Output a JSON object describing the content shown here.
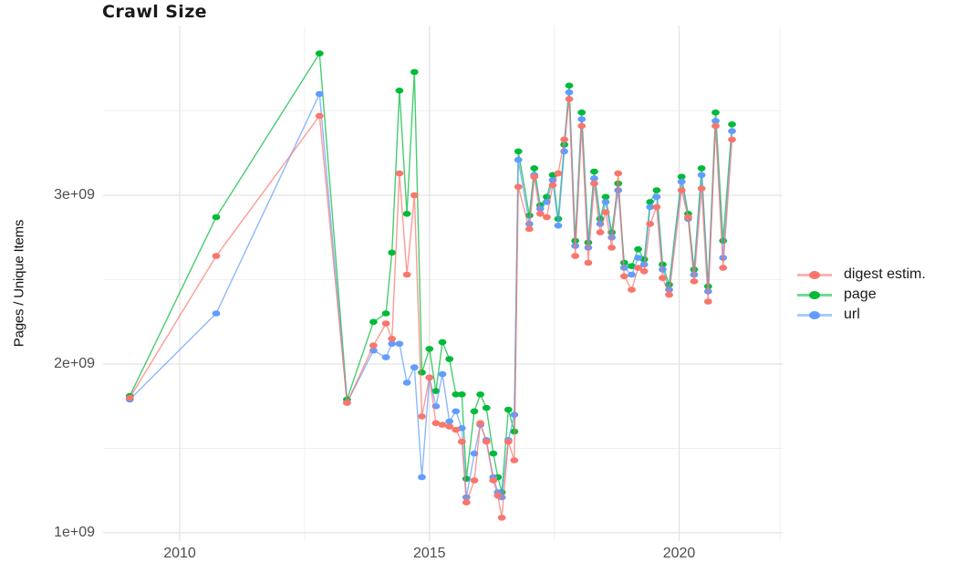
{
  "title": "Crawl Size",
  "y_axis": {
    "label": "Pages / Unique Items",
    "ticks": [
      {
        "value": 1.0,
        "label": "1e+09"
      },
      {
        "value": 2.0,
        "label": "2e+09"
      },
      {
        "value": 3.0,
        "label": "3e+09"
      }
    ],
    "minor_ticks": [
      1.5,
      2.5,
      3.5
    ],
    "unit": "1e9 (values stored in billions)",
    "range_billions": [
      0.95,
      4.0
    ]
  },
  "x_axis": {
    "ticks": [
      {
        "value": 2010,
        "label": "2010"
      },
      {
        "value": 2015,
        "label": "2015"
      },
      {
        "value": 2020,
        "label": "2020"
      }
    ],
    "minor_ticks": [
      2012.5,
      2017.5,
      2022.02
    ],
    "range_years": [
      2008.5,
      2022.1
    ]
  },
  "legend": {
    "items": [
      {
        "label": "digest estim.",
        "color": "#F8766D"
      },
      {
        "label": "page",
        "color": "#00BA38"
      },
      {
        "label": "url",
        "color": "#619CFF"
      }
    ]
  },
  "colors": {
    "digest": "#F8766D",
    "page": "#00BA38",
    "url": "#619CFF",
    "grid_major": "#E3E3E3",
    "grid_minor": "#F0F0F0",
    "axis_text": "#4D4D4D",
    "title_text": "#1A1A1A",
    "background": "#FFFFFF"
  },
  "chart_data": {
    "type": "line",
    "title": "Crawl Size",
    "xlabel": "",
    "ylabel": "Pages / Unique Items",
    "legend_position": "right",
    "grid": true,
    "marker": "point",
    "y_unit_billions": true,
    "xlim": [
      2008.5,
      2022.1
    ],
    "ylim_billions": [
      0.95,
      4.0
    ],
    "x": [
      2009.0,
      2010.73,
      2012.8,
      2013.35,
      2013.88,
      2014.13,
      2014.25,
      2014.4,
      2014.55,
      2014.7,
      2014.85,
      2015.0,
      2015.13,
      2015.26,
      2015.4,
      2015.53,
      2015.65,
      2015.74,
      2015.9,
      2016.02,
      2016.14,
      2016.28,
      2016.37,
      2016.45,
      2016.58,
      2016.7,
      2016.78,
      2017.0,
      2017.1,
      2017.22,
      2017.35,
      2017.47,
      2017.58,
      2017.7,
      2017.8,
      2017.92,
      2018.05,
      2018.18,
      2018.3,
      2018.42,
      2018.53,
      2018.65,
      2018.78,
      2018.9,
      2019.05,
      2019.18,
      2019.3,
      2019.42,
      2019.55,
      2019.67,
      2019.8,
      2020.05,
      2020.18,
      2020.3,
      2020.45,
      2020.58,
      2020.73,
      2020.88,
      2021.06
    ],
    "series": [
      {
        "name": "digest estim.",
        "color": "#F8766D",
        "values": [
          1.8,
          2.64,
          3.47,
          1.77,
          2.11,
          2.24,
          2.15,
          3.13,
          2.53,
          3.0,
          1.69,
          1.92,
          1.65,
          1.64,
          1.63,
          1.61,
          1.54,
          1.18,
          1.31,
          1.65,
          1.54,
          1.31,
          1.22,
          1.09,
          1.54,
          1.43,
          3.05,
          2.8,
          3.11,
          2.89,
          2.87,
          3.06,
          3.13,
          3.33,
          3.57,
          2.64,
          3.41,
          2.6,
          3.07,
          2.78,
          2.9,
          2.69,
          3.13,
          2.52,
          2.44,
          2.57,
          2.55,
          2.83,
          2.93,
          2.51,
          2.41,
          3.03,
          2.87,
          2.49,
          3.04,
          2.37,
          3.41,
          2.57,
          3.33
        ]
      },
      {
        "name": "page",
        "color": "#00BA38",
        "values": [
          1.81,
          2.87,
          3.84,
          1.79,
          2.25,
          2.3,
          2.66,
          3.62,
          2.89,
          3.73,
          1.95,
          2.09,
          1.84,
          2.13,
          2.03,
          1.82,
          1.82,
          1.32,
          1.72,
          1.82,
          1.74,
          1.47,
          1.33,
          1.24,
          1.73,
          1.6,
          3.26,
          2.88,
          3.16,
          2.94,
          2.99,
          3.12,
          2.86,
          3.3,
          3.65,
          2.73,
          3.49,
          2.72,
          3.14,
          2.86,
          2.99,
          2.78,
          3.07,
          2.6,
          2.58,
          2.68,
          2.62,
          2.96,
          3.03,
          2.59,
          2.47,
          3.11,
          2.89,
          2.56,
          3.16,
          2.46,
          3.49,
          2.73,
          3.42
        ]
      },
      {
        "name": "url",
        "color": "#619CFF",
        "values": [
          1.79,
          2.3,
          3.6,
          1.77,
          2.08,
          2.04,
          2.12,
          2.12,
          1.89,
          1.98,
          1.33,
          1.92,
          1.75,
          1.94,
          1.66,
          1.72,
          1.62,
          1.21,
          1.47,
          1.64,
          1.55,
          1.33,
          1.24,
          1.21,
          1.55,
          1.7,
          3.21,
          2.83,
          3.12,
          2.92,
          2.96,
          3.09,
          2.82,
          3.26,
          3.61,
          2.7,
          3.45,
          2.69,
          3.1,
          2.83,
          2.96,
          2.75,
          3.03,
          2.57,
          2.53,
          2.63,
          2.59,
          2.93,
          2.99,
          2.56,
          2.44,
          3.08,
          2.86,
          2.53,
          3.12,
          2.43,
          3.44,
          2.63,
          3.38
        ]
      }
    ]
  }
}
